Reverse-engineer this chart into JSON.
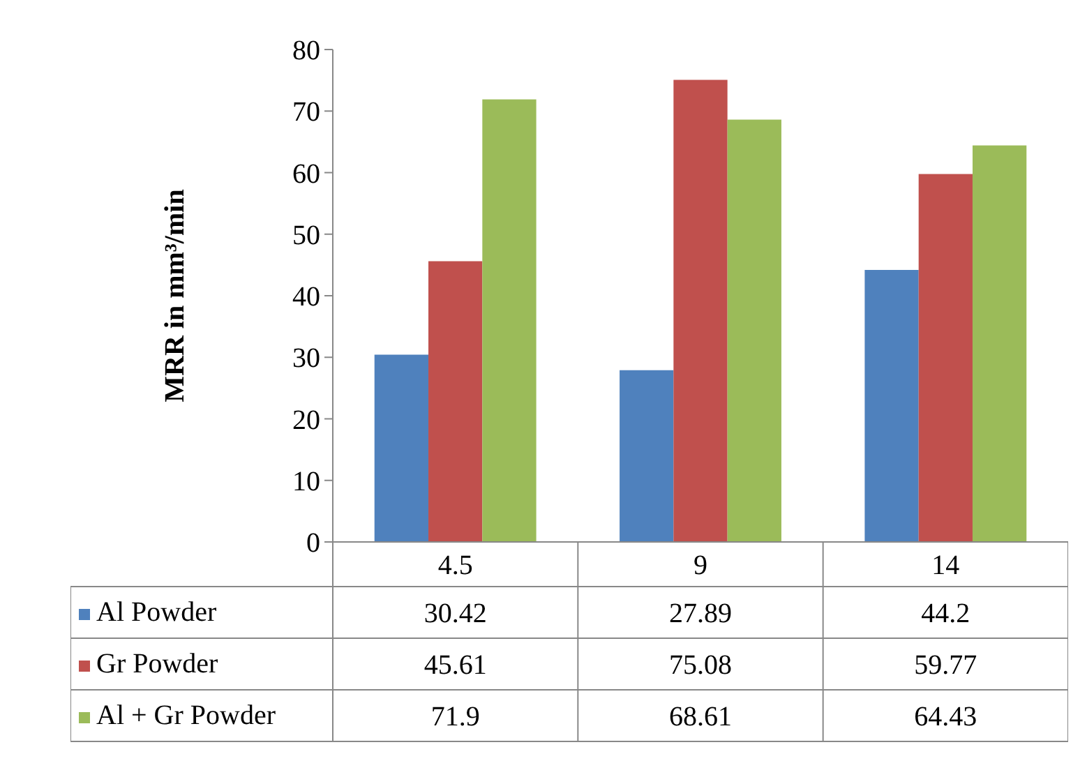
{
  "chart_data": {
    "type": "bar",
    "ylabel": "MRR in mm³/min",
    "categories": [
      "4.5",
      "9",
      "14"
    ],
    "series": [
      {
        "name": "Al Powder",
        "color": "#4f81bd",
        "values": [
          30.42,
          27.89,
          44.2
        ]
      },
      {
        "name": "Gr Powder",
        "color": "#c0504d",
        "values": [
          45.61,
          75.08,
          59.77
        ]
      },
      {
        "name": "Al + Gr Powder",
        "color": "#9bbb59",
        "values": [
          71.9,
          68.61,
          64.43
        ]
      }
    ],
    "ylim": [
      0,
      80
    ],
    "yticks": [
      0,
      10,
      20,
      30,
      40,
      50,
      60,
      70,
      80
    ],
    "grid": false,
    "legend": "bottom",
    "data_labels": true
  }
}
